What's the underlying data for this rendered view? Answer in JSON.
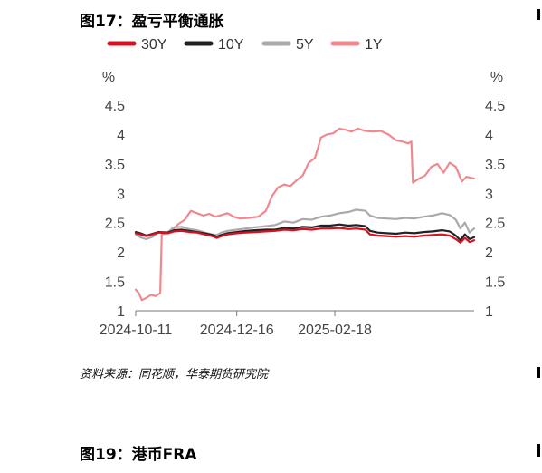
{
  "figure_title": "图17：盈亏平衡通胀",
  "source_note": "资料来源：同花顺，华泰期货研究院",
  "next_figure_title": "图19：港币FRA",
  "chart_data": {
    "type": "line",
    "title": "",
    "xlabel": "",
    "y_unit_left": "%",
    "y_unit_right": "%",
    "ylim": [
      1,
      4.5
    ],
    "yticks": [
      "1",
      "1.5",
      "2",
      "2.5",
      "3",
      "3.5",
      "4",
      "4.5"
    ],
    "xlim": [
      "2024-10-11",
      "2025-05-20"
    ],
    "xticks": [
      "2024-10-11",
      "2024-12-16",
      "2025-02-18"
    ],
    "grid": false,
    "legend_position": "top-left",
    "series": [
      {
        "name": "30Y",
        "color": "#d7111f",
        "points": [
          [
            "2024-10-11",
            2.32
          ],
          [
            "2024-10-14",
            2.3
          ],
          [
            "2024-10-18",
            2.27
          ],
          [
            "2024-10-22",
            2.3
          ],
          [
            "2024-10-26",
            2.33
          ],
          [
            "2024-11-01",
            2.32
          ],
          [
            "2024-11-05",
            2.35
          ],
          [
            "2024-11-10",
            2.36
          ],
          [
            "2024-11-15",
            2.34
          ],
          [
            "2024-11-20",
            2.33
          ],
          [
            "2024-11-25",
            2.3
          ],
          [
            "2024-11-30",
            2.27
          ],
          [
            "2024-12-03",
            2.24
          ],
          [
            "2024-12-06",
            2.27
          ],
          [
            "2024-12-10",
            2.3
          ],
          [
            "2024-12-16",
            2.32
          ],
          [
            "2024-12-22",
            2.33
          ],
          [
            "2024-12-28",
            2.34
          ],
          [
            "2025-01-04",
            2.35
          ],
          [
            "2025-01-10",
            2.36
          ],
          [
            "2025-01-16",
            2.38
          ],
          [
            "2025-01-22",
            2.37
          ],
          [
            "2025-01-28",
            2.39
          ],
          [
            "2025-02-03",
            2.38
          ],
          [
            "2025-02-09",
            2.4
          ],
          [
            "2025-02-15",
            2.4
          ],
          [
            "2025-02-21",
            2.41
          ],
          [
            "2025-02-27",
            2.39
          ],
          [
            "2025-03-04",
            2.4
          ],
          [
            "2025-03-10",
            2.38
          ],
          [
            "2025-03-13",
            2.3
          ],
          [
            "2025-03-18",
            2.28
          ],
          [
            "2025-03-24",
            2.27
          ],
          [
            "2025-03-30",
            2.26
          ],
          [
            "2025-04-05",
            2.27
          ],
          [
            "2025-04-11",
            2.26
          ],
          [
            "2025-04-17",
            2.28
          ],
          [
            "2025-04-23",
            2.29
          ],
          [
            "2025-04-29",
            2.3
          ],
          [
            "2025-05-04",
            2.28
          ],
          [
            "2025-05-08",
            2.22
          ],
          [
            "2025-05-11",
            2.16
          ],
          [
            "2025-05-14",
            2.24
          ],
          [
            "2025-05-17",
            2.17
          ],
          [
            "2025-05-20",
            2.2
          ]
        ]
      },
      {
        "name": "10Y",
        "color": "#222222",
        "points": [
          [
            "2024-10-11",
            2.34
          ],
          [
            "2024-10-14",
            2.32
          ],
          [
            "2024-10-18",
            2.28
          ],
          [
            "2024-10-22",
            2.31
          ],
          [
            "2024-10-26",
            2.34
          ],
          [
            "2024-11-01",
            2.33
          ],
          [
            "2024-11-05",
            2.37
          ],
          [
            "2024-11-10",
            2.38
          ],
          [
            "2024-11-15",
            2.36
          ],
          [
            "2024-11-20",
            2.34
          ],
          [
            "2024-11-25",
            2.32
          ],
          [
            "2024-11-30",
            2.29
          ],
          [
            "2024-12-03",
            2.26
          ],
          [
            "2024-12-06",
            2.29
          ],
          [
            "2024-12-10",
            2.32
          ],
          [
            "2024-12-16",
            2.34
          ],
          [
            "2024-12-22",
            2.36
          ],
          [
            "2024-12-28",
            2.37
          ],
          [
            "2025-01-04",
            2.38
          ],
          [
            "2025-01-10",
            2.38
          ],
          [
            "2025-01-16",
            2.41
          ],
          [
            "2025-01-22",
            2.4
          ],
          [
            "2025-01-28",
            2.43
          ],
          [
            "2025-02-03",
            2.42
          ],
          [
            "2025-02-09",
            2.45
          ],
          [
            "2025-02-15",
            2.45
          ],
          [
            "2025-02-21",
            2.47
          ],
          [
            "2025-02-27",
            2.45
          ],
          [
            "2025-03-04",
            2.46
          ],
          [
            "2025-03-10",
            2.44
          ],
          [
            "2025-03-13",
            2.36
          ],
          [
            "2025-03-18",
            2.33
          ],
          [
            "2025-03-24",
            2.32
          ],
          [
            "2025-03-30",
            2.31
          ],
          [
            "2025-04-05",
            2.33
          ],
          [
            "2025-04-11",
            2.32
          ],
          [
            "2025-04-17",
            2.34
          ],
          [
            "2025-04-23",
            2.35
          ],
          [
            "2025-04-29",
            2.37
          ],
          [
            "2025-05-04",
            2.35
          ],
          [
            "2025-05-08",
            2.28
          ],
          [
            "2025-05-11",
            2.2
          ],
          [
            "2025-05-14",
            2.3
          ],
          [
            "2025-05-17",
            2.22
          ],
          [
            "2025-05-20",
            2.25
          ]
        ]
      },
      {
        "name": "5Y",
        "color": "#aaaaaa",
        "points": [
          [
            "2024-10-11",
            2.3
          ],
          [
            "2024-10-14",
            2.25
          ],
          [
            "2024-10-18",
            2.22
          ],
          [
            "2024-10-22",
            2.26
          ],
          [
            "2024-10-26",
            2.33
          ],
          [
            "2024-11-01",
            2.34
          ],
          [
            "2024-11-05",
            2.42
          ],
          [
            "2024-11-10",
            2.43
          ],
          [
            "2024-11-15",
            2.39
          ],
          [
            "2024-11-20",
            2.37
          ],
          [
            "2024-11-25",
            2.33
          ],
          [
            "2024-11-30",
            2.3
          ],
          [
            "2024-12-03",
            2.29
          ],
          [
            "2024-12-06",
            2.33
          ],
          [
            "2024-12-10",
            2.36
          ],
          [
            "2024-12-16",
            2.38
          ],
          [
            "2024-12-22",
            2.4
          ],
          [
            "2024-12-28",
            2.42
          ],
          [
            "2025-01-04",
            2.44
          ],
          [
            "2025-01-10",
            2.46
          ],
          [
            "2025-01-16",
            2.52
          ],
          [
            "2025-01-22",
            2.5
          ],
          [
            "2025-01-28",
            2.56
          ],
          [
            "2025-02-03",
            2.55
          ],
          [
            "2025-02-09",
            2.6
          ],
          [
            "2025-02-15",
            2.62
          ],
          [
            "2025-02-21",
            2.66
          ],
          [
            "2025-02-27",
            2.68
          ],
          [
            "2025-03-04",
            2.72
          ],
          [
            "2025-03-10",
            2.7
          ],
          [
            "2025-03-13",
            2.62
          ],
          [
            "2025-03-18",
            2.58
          ],
          [
            "2025-03-24",
            2.57
          ],
          [
            "2025-03-30",
            2.56
          ],
          [
            "2025-04-05",
            2.58
          ],
          [
            "2025-04-11",
            2.57
          ],
          [
            "2025-04-17",
            2.6
          ],
          [
            "2025-04-23",
            2.62
          ],
          [
            "2025-04-29",
            2.66
          ],
          [
            "2025-05-04",
            2.63
          ],
          [
            "2025-05-08",
            2.55
          ],
          [
            "2025-05-11",
            2.4
          ],
          [
            "2025-05-14",
            2.5
          ],
          [
            "2025-05-17",
            2.33
          ],
          [
            "2025-05-20",
            2.4
          ]
        ]
      },
      {
        "name": "1Y",
        "color": "#f0898f",
        "points": [
          [
            "2024-10-11",
            1.36
          ],
          [
            "2024-10-13",
            1.3
          ],
          [
            "2024-10-15",
            1.18
          ],
          [
            "2024-10-18",
            1.22
          ],
          [
            "2024-10-21",
            1.27
          ],
          [
            "2024-10-24",
            1.25
          ],
          [
            "2024-10-27",
            1.3
          ],
          [
            "2024-10-28",
            2.3
          ],
          [
            "2024-10-31",
            2.32
          ],
          [
            "2024-11-04",
            2.38
          ],
          [
            "2024-11-08",
            2.48
          ],
          [
            "2024-11-12",
            2.55
          ],
          [
            "2024-11-16",
            2.7
          ],
          [
            "2024-11-20",
            2.66
          ],
          [
            "2024-11-24",
            2.62
          ],
          [
            "2024-11-28",
            2.65
          ],
          [
            "2024-12-02",
            2.6
          ],
          [
            "2024-12-06",
            2.63
          ],
          [
            "2024-12-10",
            2.66
          ],
          [
            "2024-12-14",
            2.6
          ],
          [
            "2024-12-18",
            2.57
          ],
          [
            "2024-12-24",
            2.58
          ],
          [
            "2024-12-30",
            2.6
          ],
          [
            "2025-01-04",
            2.7
          ],
          [
            "2025-01-08",
            2.95
          ],
          [
            "2025-01-12",
            3.1
          ],
          [
            "2025-01-16",
            3.15
          ],
          [
            "2025-01-20",
            3.12
          ],
          [
            "2025-01-24",
            3.22
          ],
          [
            "2025-01-28",
            3.3
          ],
          [
            "2025-02-01",
            3.52
          ],
          [
            "2025-02-05",
            3.6
          ],
          [
            "2025-02-09",
            3.95
          ],
          [
            "2025-02-13",
            4.0
          ],
          [
            "2025-02-17",
            4.02
          ],
          [
            "2025-02-21",
            4.1
          ],
          [
            "2025-02-25",
            4.08
          ],
          [
            "2025-03-01",
            4.05
          ],
          [
            "2025-03-05",
            4.1
          ],
          [
            "2025-03-10",
            4.06
          ],
          [
            "2025-03-15",
            4.05
          ],
          [
            "2025-03-20",
            4.06
          ],
          [
            "2025-03-25",
            4.0
          ],
          [
            "2025-03-30",
            3.9
          ],
          [
            "2025-04-03",
            3.88
          ],
          [
            "2025-04-07",
            3.85
          ],
          [
            "2025-04-09",
            3.88
          ],
          [
            "2025-04-10",
            3.18
          ],
          [
            "2025-04-14",
            3.25
          ],
          [
            "2025-04-18",
            3.3
          ],
          [
            "2025-04-22",
            3.45
          ],
          [
            "2025-04-26",
            3.5
          ],
          [
            "2025-04-30",
            3.35
          ],
          [
            "2025-05-04",
            3.52
          ],
          [
            "2025-05-08",
            3.45
          ],
          [
            "2025-05-12",
            3.2
          ],
          [
            "2025-05-15",
            3.28
          ],
          [
            "2025-05-20",
            3.25
          ]
        ]
      }
    ]
  }
}
